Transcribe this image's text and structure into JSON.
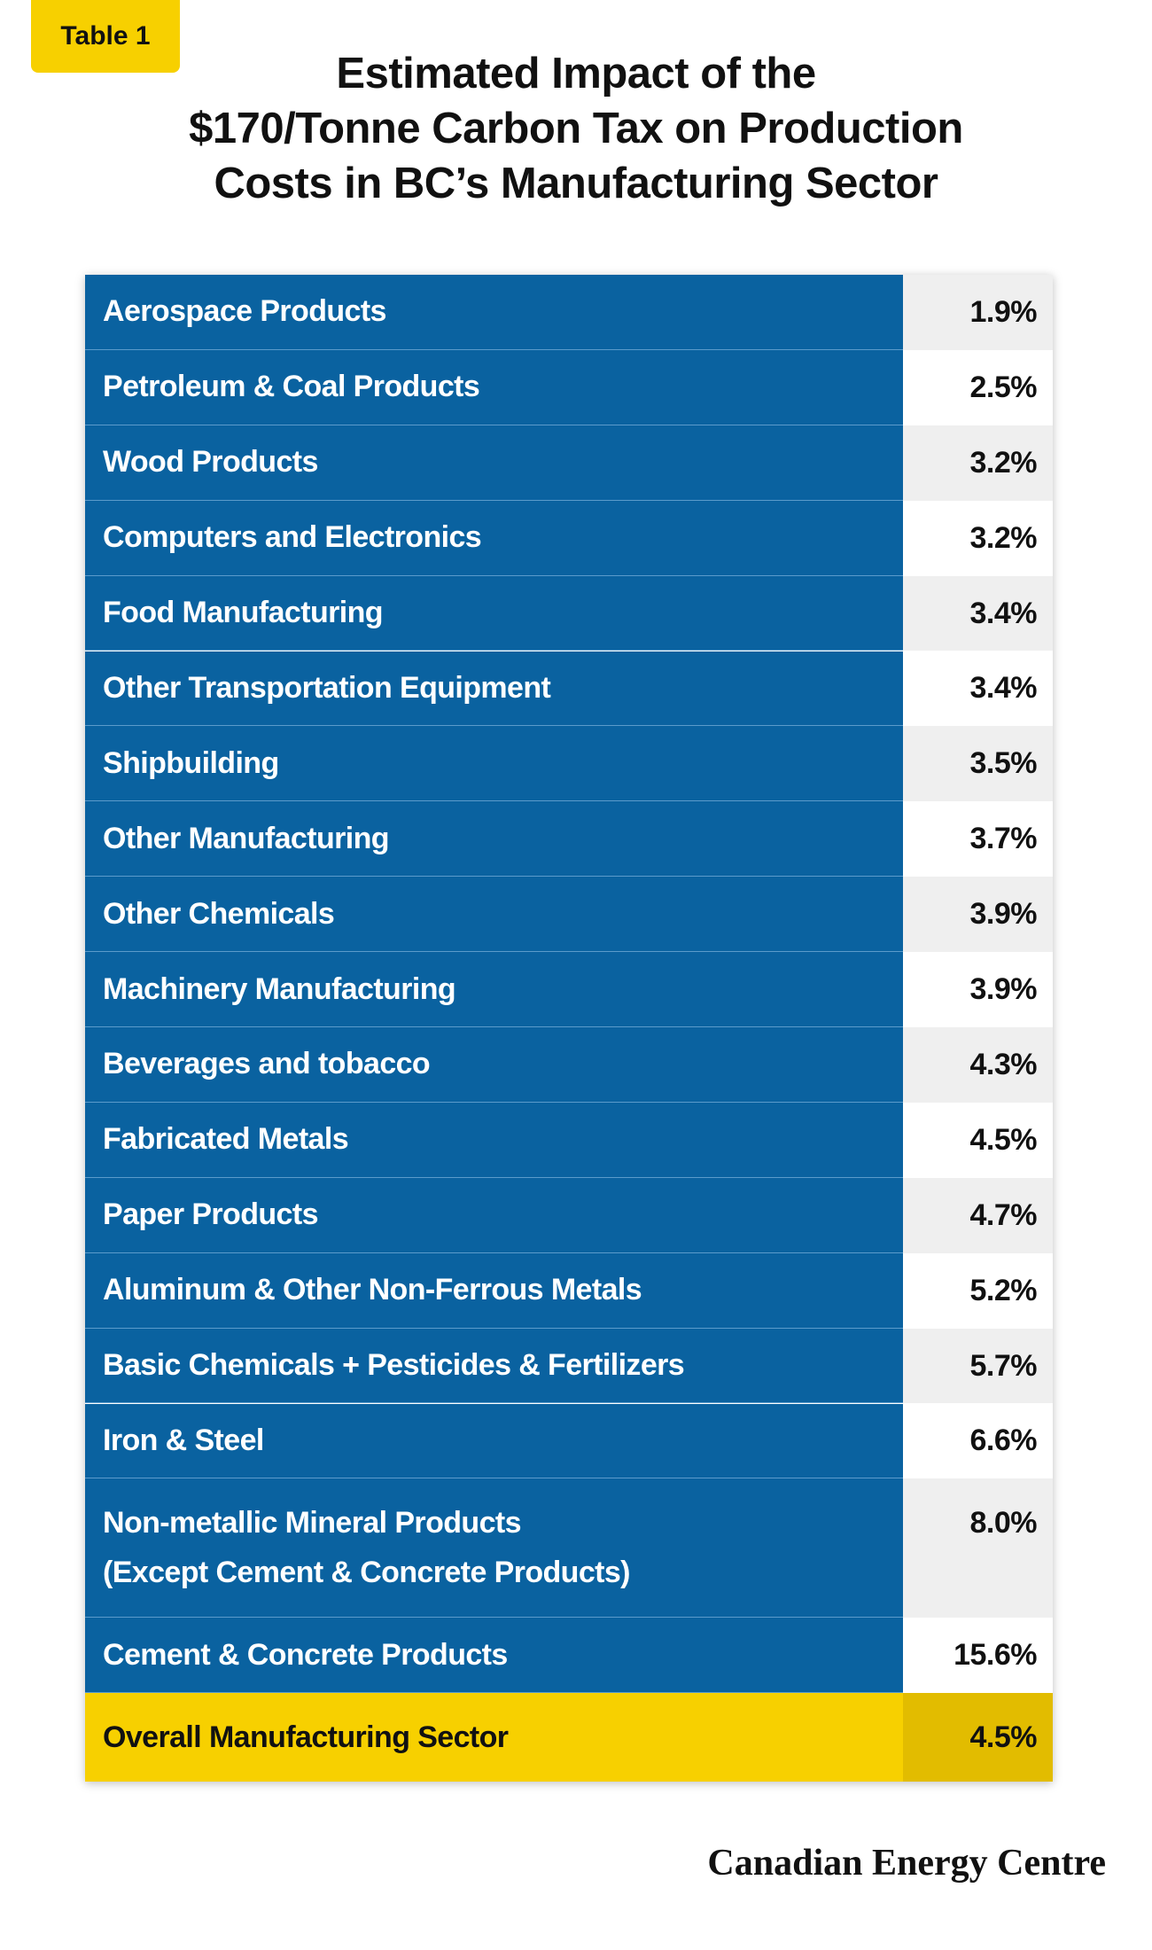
{
  "badge": "Table 1",
  "title_lines": [
    "Estimated Impact of the",
    "$170/Tonne Carbon Tax on Production",
    "Costs in BC’s Manufacturing Sector"
  ],
  "colors": {
    "label_bg": "#0a62a0",
    "val_odd": "#efefef",
    "val_even": "#ffffff",
    "total_label_bg": "#f7d000",
    "total_val_bg": "#e2bc00"
  },
  "chart_data": {
    "type": "table",
    "rows": [
      {
        "sector": "Aerospace Products",
        "value": "1.9%"
      },
      {
        "sector": "Petroleum & Coal Products",
        "value": "2.5%"
      },
      {
        "sector": "Wood Products",
        "value": "3.2%"
      },
      {
        "sector": "Computers and Electronics",
        "value": "3.2%"
      },
      {
        "sector": "Food Manufacturing",
        "value": "3.4%"
      },
      {
        "sector": "Other Transportation Equipment",
        "value": "3.4%"
      },
      {
        "sector": "Shipbuilding",
        "value": "3.5%"
      },
      {
        "sector": "Other Manufacturing",
        "value": "3.7%"
      },
      {
        "sector": "Other Chemicals",
        "value": "3.9%"
      },
      {
        "sector": "Machinery Manufacturing",
        "value": "3.9%"
      },
      {
        "sector": "Beverages and tobacco",
        "value": "4.3%"
      },
      {
        "sector": "Fabricated Metals",
        "value": "4.5%"
      },
      {
        "sector": "Paper Products",
        "value": "4.7%"
      },
      {
        "sector": "Aluminum & Other Non-Ferrous Metals",
        "value": "5.2%"
      },
      {
        "sector": "Basic Chemicals + Pesticides & Fertilizers",
        "value": "5.7%"
      },
      {
        "sector": "Iron & Steel",
        "value": "6.6%"
      },
      {
        "sector": "Non-metallic Mineral Products",
        "sector_line2": "(Except Cement & Concrete Products)",
        "value": "8.0%"
      },
      {
        "sector": "Cement & Concrete Products",
        "value": "15.6%"
      }
    ],
    "total": {
      "sector": "Overall Manufacturing Sector",
      "value": "4.5%"
    }
  },
  "footer": "Canadian Energy Centre"
}
